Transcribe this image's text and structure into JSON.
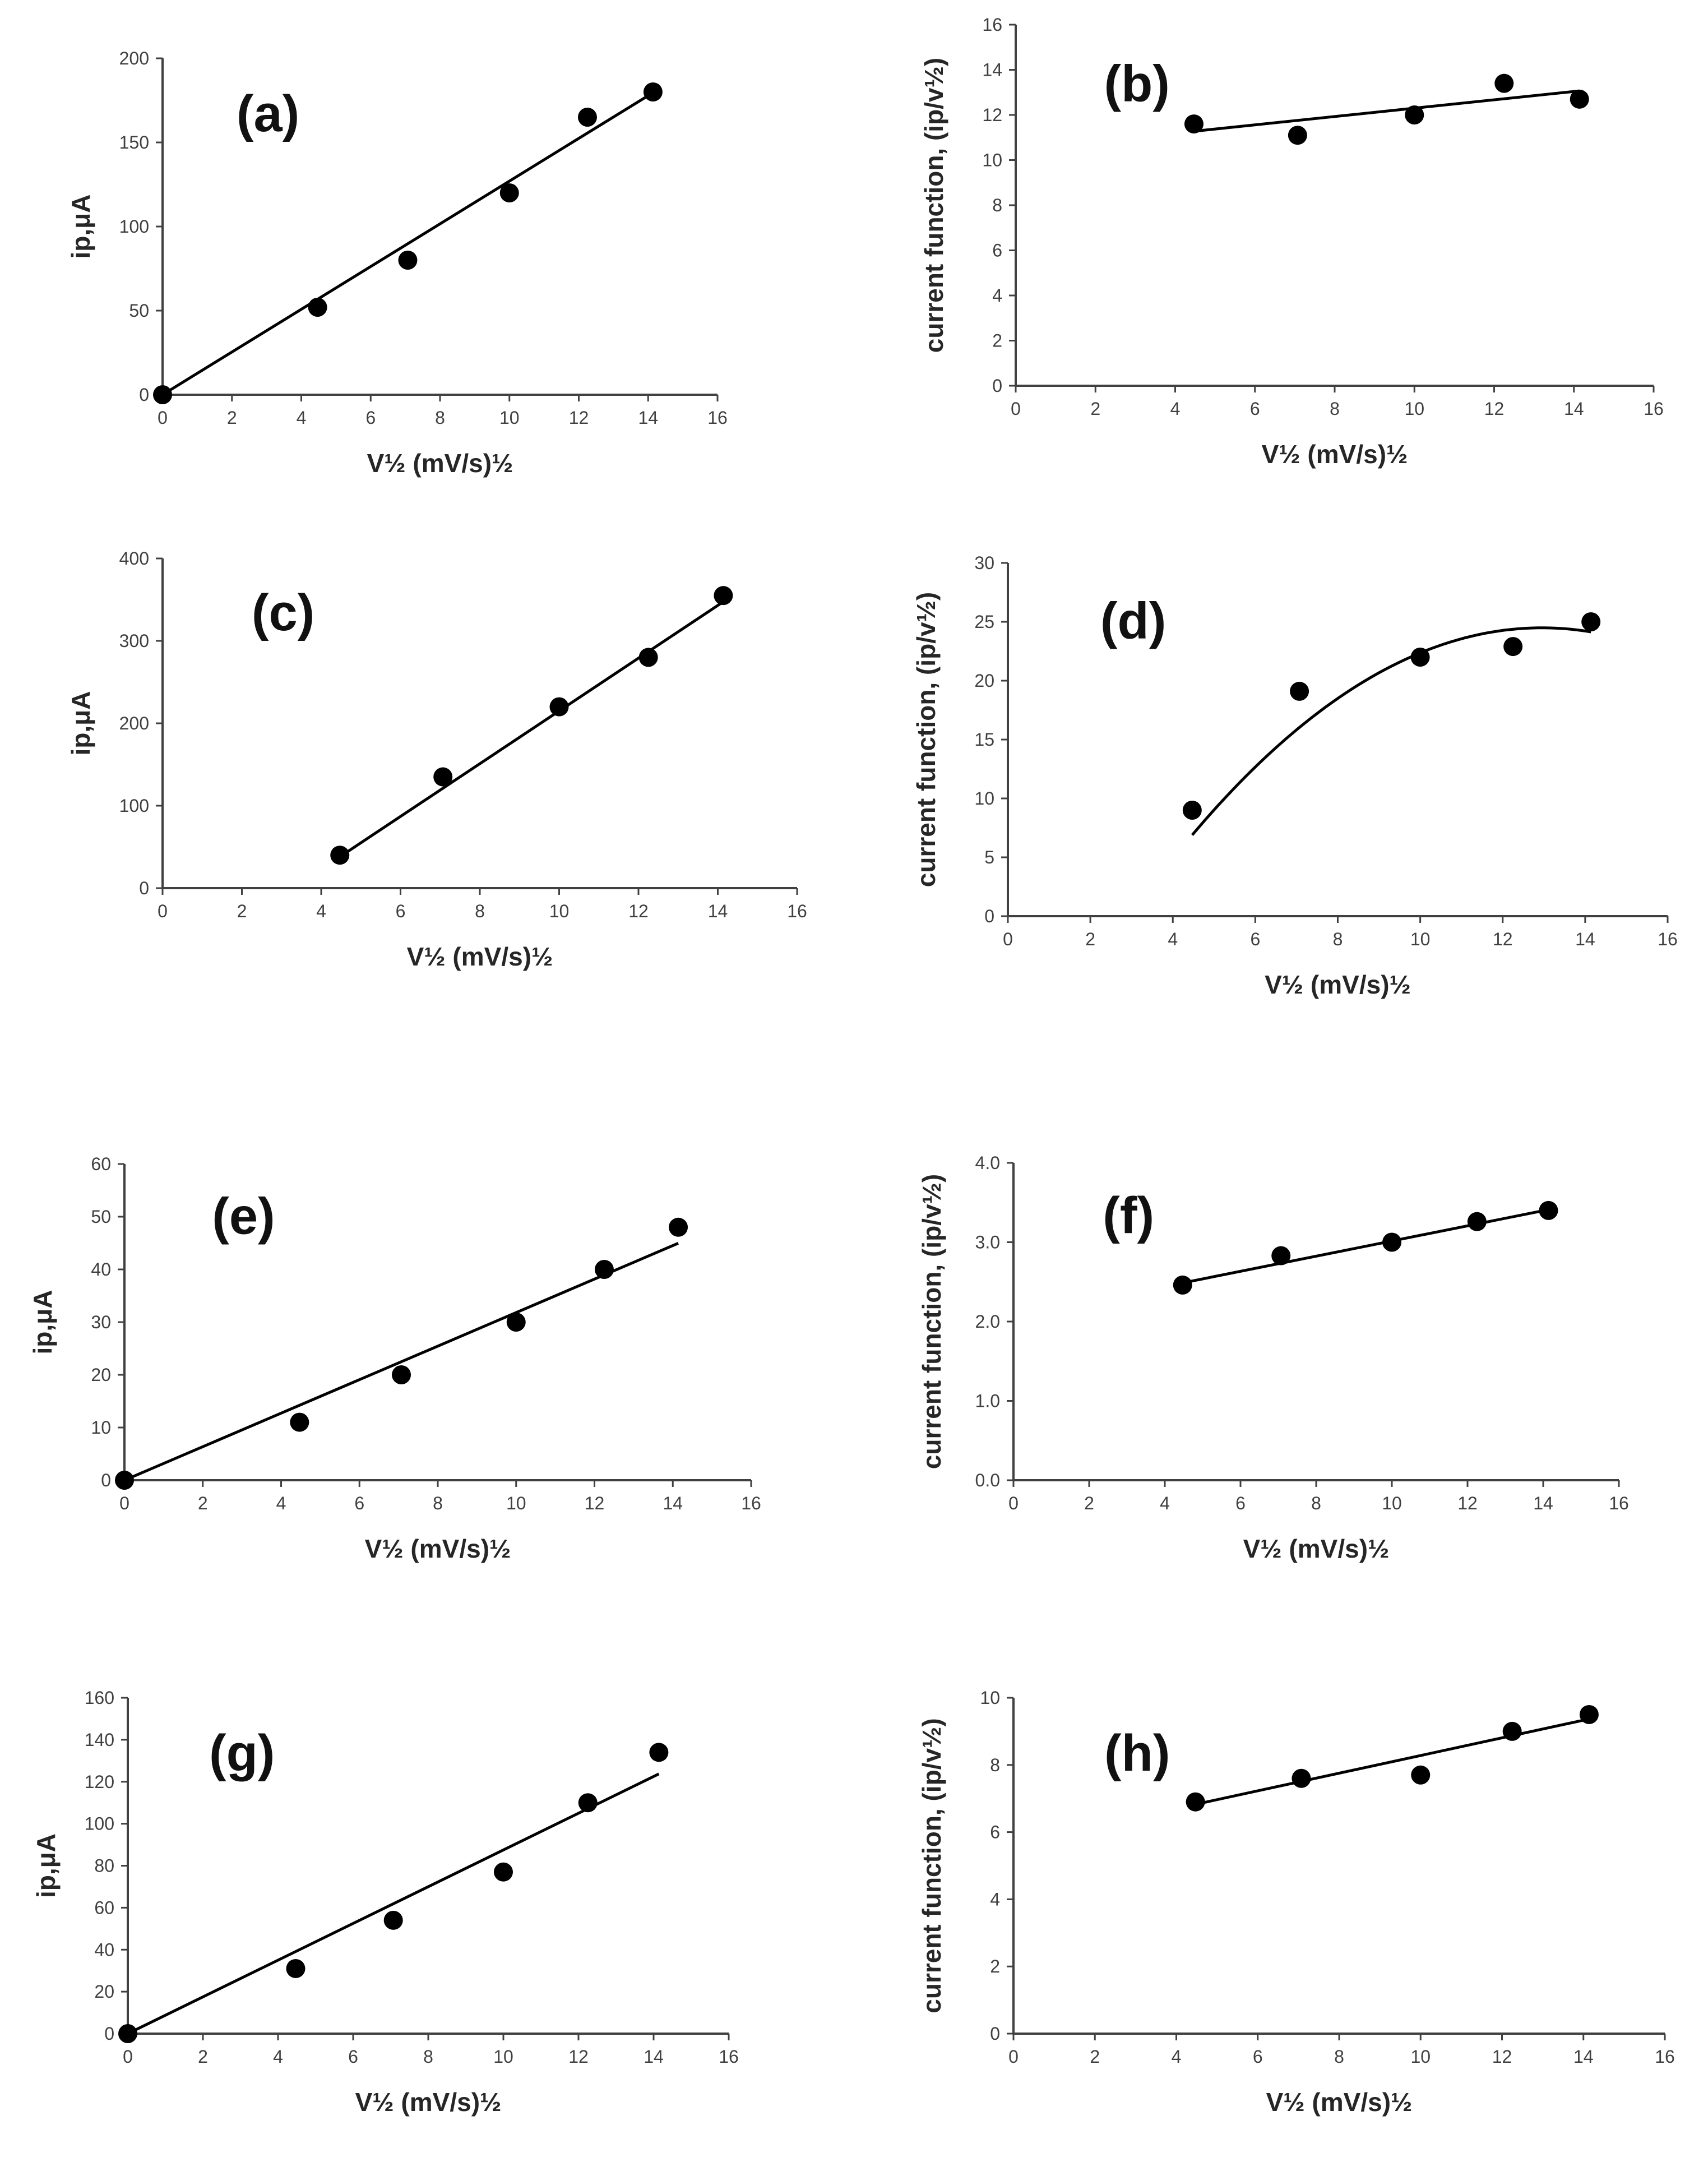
{
  "chart_data": [
    {
      "id": "a",
      "type": "scatter",
      "panel_label": "(a)",
      "xlabel": "V½ (mV/s)½",
      "ylabel": "ip,μA",
      "xlim": [
        0,
        16
      ],
      "ylim": [
        0,
        200
      ],
      "x_ticks": [
        "0",
        "2",
        "4",
        "6",
        "8",
        "10",
        "12",
        "14",
        "16"
      ],
      "y_ticks": [
        "0",
        "50",
        "100",
        "150",
        "200"
      ],
      "x": [
        0,
        4.47,
        7.07,
        10,
        12.25,
        14.14
      ],
      "y": [
        0,
        52,
        80,
        120,
        165,
        180
      ],
      "fit": {
        "kind": "linear",
        "slope": 12.7,
        "intercept": 0,
        "from": 0,
        "to": 14.14
      }
    },
    {
      "id": "b",
      "type": "scatter",
      "panel_label": "(b)",
      "xlabel": "V½ (mV/s)½",
      "ylabel": "current function, (ip/v½)",
      "xlim": [
        0,
        16
      ],
      "ylim": [
        0,
        16
      ],
      "x_ticks": [
        "0",
        "2",
        "4",
        "6",
        "8",
        "10",
        "12",
        "14",
        "16"
      ],
      "y_ticks": [
        "0",
        "2",
        "4",
        "6",
        "8",
        "10",
        "12",
        "14",
        "16"
      ],
      "x": [
        4.47,
        7.07,
        10,
        12.25,
        14.14
      ],
      "y": [
        11.6,
        11.1,
        12.0,
        13.4,
        12.7
      ],
      "fit": {
        "kind": "linear",
        "slope": 0.185,
        "intercept": 10.45,
        "from": 4.47,
        "to": 14.14
      }
    },
    {
      "id": "c",
      "type": "scatter",
      "panel_label": "(c)",
      "xlabel": "V½ (mV/s)½",
      "ylabel": "ip,μA",
      "xlim": [
        0,
        16
      ],
      "ylim": [
        0,
        400
      ],
      "x_ticks": [
        "0",
        "2",
        "4",
        "6",
        "8",
        "10",
        "12",
        "14",
        "16"
      ],
      "y_ticks": [
        "0",
        "100",
        "200",
        "300",
        "400"
      ],
      "x": [
        4.47,
        7.07,
        10,
        12.25,
        14.14
      ],
      "y": [
        40,
        135,
        220,
        280,
        355
      ],
      "fit": {
        "kind": "linear",
        "slope": 32.0,
        "intercept": -105,
        "from": 4.47,
        "to": 14.14
      }
    },
    {
      "id": "d",
      "type": "scatter",
      "panel_label": "(d)",
      "xlabel": "V½ (mV/s)½",
      "ylabel": "current function, (ip/v½)",
      "xlim": [
        0,
        16
      ],
      "ylim": [
        0,
        30
      ],
      "x_ticks": [
        "0",
        "2",
        "4",
        "6",
        "8",
        "10",
        "12",
        "14",
        "16"
      ],
      "y_ticks": [
        "0",
        "5",
        "10",
        "15",
        "20",
        "25",
        "30"
      ],
      "x": [
        4.47,
        7.07,
        10,
        12.25,
        14.14
      ],
      "y": [
        9.0,
        19.1,
        22.0,
        22.9,
        25.0
      ],
      "fit": {
        "kind": "quadratic",
        "a": -0.2447,
        "b": 6.338,
        "c": -16.55,
        "from": 4.47,
        "to": 14.14
      }
    },
    {
      "id": "e",
      "type": "scatter",
      "panel_label": "(e)",
      "xlabel": "V½ (mV/s)½",
      "ylabel": "ip,μA",
      "xlim": [
        0,
        16
      ],
      "ylim": [
        0,
        60
      ],
      "x_ticks": [
        "0",
        "2",
        "4",
        "6",
        "8",
        "10",
        "12",
        "14",
        "16"
      ],
      "y_ticks": [
        "0",
        "10",
        "20",
        "30",
        "40",
        "50",
        "60"
      ],
      "x": [
        0,
        4.47,
        7.07,
        10,
        12.25,
        14.14
      ],
      "y": [
        0,
        11,
        20,
        30,
        40,
        48
      ],
      "fit": {
        "kind": "linear",
        "slope": 3.18,
        "intercept": 0,
        "from": 0,
        "to": 14.14
      }
    },
    {
      "id": "f",
      "type": "scatter",
      "panel_label": "(f)",
      "xlabel": "V½ (mV/s)½",
      "ylabel": "current function, (ip/v½)",
      "xlim": [
        0,
        16
      ],
      "ylim": [
        0,
        4
      ],
      "x_ticks": [
        "0",
        "2",
        "4",
        "6",
        "8",
        "10",
        "12",
        "14",
        "16"
      ],
      "y_ticks": [
        "0.0",
        "1.0",
        "2.0",
        "3.0",
        "4.0"
      ],
      "x": [
        4.47,
        7.07,
        10,
        12.25,
        14.14
      ],
      "y": [
        2.46,
        2.83,
        3.0,
        3.26,
        3.4
      ],
      "fit": {
        "kind": "linear",
        "slope": 0.0955,
        "intercept": 2.06,
        "from": 4.47,
        "to": 14.14
      }
    },
    {
      "id": "g",
      "type": "scatter",
      "panel_label": "(g)",
      "xlabel": "V½ (mV/s)½",
      "ylabel": "ip,μA",
      "xlim": [
        0,
        16
      ],
      "ylim": [
        0,
        160
      ],
      "x_ticks": [
        "0",
        "2",
        "4",
        "6",
        "8",
        "10",
        "12",
        "14",
        "16"
      ],
      "y_ticks": [
        "0",
        "20",
        "40",
        "60",
        "80",
        "100",
        "120",
        "140",
        "160"
      ],
      "x": [
        0,
        4.47,
        7.07,
        10,
        12.25,
        14.14
      ],
      "y": [
        0,
        31,
        54,
        77,
        110,
        134
      ],
      "fit": {
        "kind": "linear",
        "slope": 8.75,
        "intercept": 0,
        "from": 0,
        "to": 14.14
      }
    },
    {
      "id": "h",
      "type": "scatter",
      "panel_label": "(h)",
      "xlabel": "V½ (mV/s)½",
      "ylabel": "current function, (ip/v½)",
      "xlim": [
        0,
        16
      ],
      "ylim": [
        0,
        10
      ],
      "x_ticks": [
        "0",
        "2",
        "4",
        "6",
        "8",
        "10",
        "12",
        "14",
        "16"
      ],
      "y_ticks": [
        "0",
        "2",
        "4",
        "6",
        "8",
        "10"
      ],
      "x": [
        4.47,
        7.07,
        10,
        12.25,
        14.14
      ],
      "y": [
        6.9,
        7.6,
        7.7,
        9.0,
        9.5
      ],
      "fit": {
        "kind": "linear",
        "slope": 0.263,
        "intercept": 5.65,
        "from": 4.47,
        "to": 14.14
      }
    }
  ]
}
